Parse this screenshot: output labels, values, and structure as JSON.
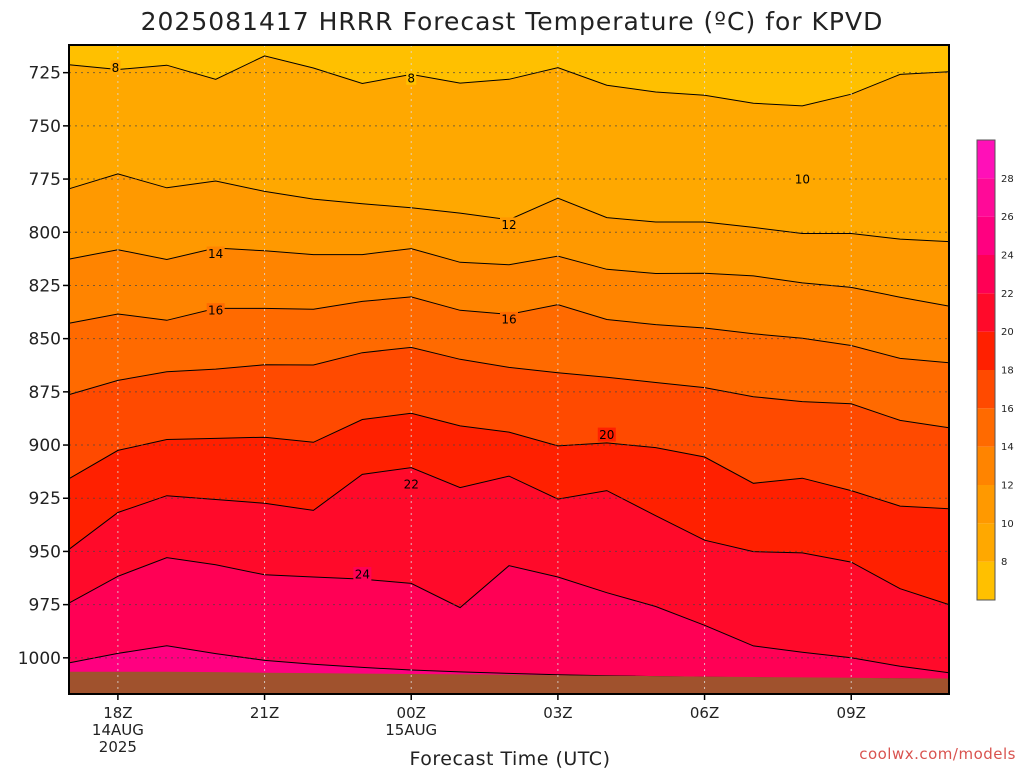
{
  "chart_data": {
    "type": "contour",
    "title": "2025081417 HRRR Forecast Temperature (ºC) for KPVD",
    "xlabel": "Forecast Time (UTC)",
    "ylabel": "",
    "credit": "coolwx.com/models",
    "y_axis": {
      "reversed": true,
      "range_hpa": [
        1017,
        712
      ],
      "ticks": [
        725,
        750,
        775,
        800,
        825,
        850,
        875,
        900,
        925,
        950,
        975,
        1000
      ]
    },
    "x_axis": {
      "range_hours": [
        -1,
        17
      ],
      "ticks": [
        {
          "hour": 0,
          "lines": [
            "18Z",
            "14AUG",
            "2025"
          ]
        },
        {
          "hour": 3,
          "lines": [
            "21Z"
          ]
        },
        {
          "hour": 6,
          "lines": [
            "00Z",
            "15AUG"
          ]
        },
        {
          "hour": 9,
          "lines": [
            "03Z"
          ]
        },
        {
          "hour": 12,
          "lines": [
            "06Z"
          ]
        },
        {
          "hour": 15,
          "lines": [
            "09Z"
          ]
        }
      ]
    },
    "grid": true,
    "surface_pressure_hpa": [
      1006.5,
      1006.5,
      1006.5,
      1006.7,
      1007.0,
      1007.2,
      1007.4,
      1007.6,
      1007.8,
      1008.0,
      1008.2,
      1008.4,
      1008.6,
      1008.8,
      1009.0,
      1009.2,
      1009.4,
      1009.6,
      1009.7
    ],
    "temperature_profiles": [
      {
        "level": 8,
        "hour": [
          -1,
          0,
          1,
          2,
          3,
          4,
          5,
          6,
          7,
          8,
          9,
          10,
          11,
          12,
          13,
          14,
          15,
          16,
          17
        ],
        "pressure": [
          721.3,
          723.5,
          721.5,
          728.1,
          717.1,
          722.8,
          730.1,
          725.8,
          729.9,
          728.1,
          722.6,
          730.9,
          734.1,
          735.6,
          739.4,
          740.6,
          735.1,
          725.8,
          724.6
        ]
      },
      {
        "level": 9,
        "hour": [
          -1,
          0,
          1,
          2,
          3,
          4,
          5,
          6,
          7,
          8,
          9,
          10,
          11,
          12,
          13,
          14,
          15,
          16,
          17
        ],
        "pressure": [
          747.8,
          745.0,
          748.4,
          749.9,
          752.4,
          756.1,
          757.7,
          759.7,
          763.3,
          760.4,
          752.4,
          763.5,
          767.7,
          767.8,
          768.5,
          771.6,
          775.6,
          772.8,
          773.5
        ]
      },
      {
        "level": 10,
        "hour": [
          -1,
          0,
          1,
          2,
          3,
          4,
          5,
          6,
          7,
          8,
          9,
          10,
          11,
          12,
          13,
          14,
          15,
          16,
          17
        ],
        "pressure": [
          779.6,
          772.6,
          779.1,
          775.9,
          780.8,
          784.4,
          786.6,
          788.5,
          791.0,
          794.1,
          784.0,
          793.1,
          795.2,
          795.2,
          797.7,
          800.6,
          800.6,
          803.2,
          804.4
        ]
      },
      {
        "level": 12,
        "hour": [
          -1,
          0,
          1,
          2,
          3,
          4,
          5,
          6,
          7,
          8,
          9,
          10,
          11,
          12,
          13,
          14,
          15,
          16,
          17
        ],
        "pressure": [
          812.6,
          808.2,
          812.8,
          807.4,
          808.7,
          810.5,
          810.5,
          807.7,
          814.1,
          815.3,
          811.2,
          817.4,
          819.4,
          819.3,
          820.5,
          823.8,
          825.9,
          830.5,
          834.7
        ]
      },
      {
        "level": 14,
        "hour": [
          -1,
          0,
          1,
          2,
          3,
          4,
          5,
          6,
          7,
          8,
          9,
          10,
          11,
          12,
          13,
          14,
          15,
          16,
          17
        ],
        "pressure": [
          842.8,
          838.4,
          841.4,
          835.8,
          835.8,
          836.2,
          832.5,
          830.4,
          836.7,
          838.6,
          834.0,
          841.0,
          843.4,
          845.0,
          847.7,
          849.8,
          853.2,
          859.3,
          861.3
        ]
      },
      {
        "level": 16,
        "hour": [
          -1,
          0,
          1,
          2,
          3,
          4,
          5,
          6,
          7,
          8,
          9,
          10,
          11,
          12,
          13,
          14,
          15,
          16,
          17
        ],
        "pressure": [
          876.3,
          869.6,
          865.6,
          864.3,
          862.3,
          862.4,
          856.6,
          854.1,
          859.7,
          863.5,
          866.0,
          868.1,
          870.6,
          873.0,
          877.3,
          879.6,
          880.6,
          888.4,
          891.9
        ]
      },
      {
        "level": 18,
        "hour": [
          -1,
          0,
          1,
          2,
          3,
          4,
          5,
          6,
          7,
          8,
          9,
          10,
          11,
          12,
          13,
          14,
          15,
          16,
          17
        ],
        "pressure": [
          915.8,
          902.5,
          897.4,
          896.9,
          896.3,
          898.7,
          888.0,
          885.1,
          891.0,
          893.9,
          900.4,
          899.0,
          901.2,
          905.6,
          918.0,
          915.6,
          921.4,
          928.7,
          929.9
        ]
      },
      {
        "level": 20,
        "hour": [
          -1,
          0,
          1,
          2,
          3,
          4,
          5,
          6,
          7,
          8,
          9,
          10,
          11,
          12,
          13,
          14,
          15,
          16,
          17
        ],
        "pressure": [
          949.0,
          931.7,
          923.8,
          925.6,
          927.4,
          930.7,
          913.8,
          910.6,
          920.0,
          914.6,
          925.4,
          921.4,
          933.2,
          944.7,
          950.1,
          950.7,
          955.0,
          967.5,
          975.0
        ]
      },
      {
        "level": 22,
        "hour": [
          -1,
          0,
          1,
          2,
          3,
          4,
          5,
          6,
          7,
          8,
          9,
          10,
          11,
          12,
          13,
          14,
          15,
          16,
          17
        ],
        "pressure": [
          974.3,
          961.7,
          952.9,
          956.3,
          961.0,
          962.0,
          963.0,
          965.0,
          976.4,
          956.7,
          962.0,
          969.4,
          975.9,
          984.7,
          994.4,
          997.4,
          1000.0,
          1004.0,
          1007.0
        ]
      },
      {
        "level": 24,
        "hour": [
          -1,
          0,
          1,
          2,
          3,
          4,
          5,
          6,
          7,
          8,
          9,
          10,
          11,
          12,
          13,
          14,
          15,
          16,
          17
        ],
        "pressure": [
          1002.4,
          997.9,
          994.3,
          998.0,
          1001.2,
          1003.0,
          1004.5,
          1005.7,
          1006.6,
          1007.3,
          1008.0,
          1008.4,
          1008.8,
          1009.1,
          1009.4,
          1009.6,
          1009.8,
          1009.9,
          1010.0
        ]
      }
    ],
    "contour_lines": [
      8,
      10,
      12,
      14,
      16,
      18,
      20,
      22,
      24
    ],
    "contour_labels": [
      {
        "text": "8",
        "hour": -0.05,
        "pressure": 722.5
      },
      {
        "text": "8",
        "hour": 6.0,
        "pressure": 727.4
      },
      {
        "text": "10",
        "hour": 14.0,
        "pressure": 775.0
      },
      {
        "text": "12",
        "hour": 8.0,
        "pressure": 796.3
      },
      {
        "text": "14",
        "hour": 2.0,
        "pressure": 810.0
      },
      {
        "text": "16",
        "hour": 2.0,
        "pressure": 836.6
      },
      {
        "text": "16",
        "hour": 8.0,
        "pressure": 840.7
      },
      {
        "text": "20",
        "hour": 10.0,
        "pressure": 895.1
      },
      {
        "text": "22",
        "hour": 6.0,
        "pressure": 918.3
      },
      {
        "text": "24",
        "hour": 5.0,
        "pressure": 960.6
      }
    ],
    "colorbar": {
      "bands": [
        {
          "lo": 6,
          "hi": 8,
          "color": "#ffc000"
        },
        {
          "lo": 8,
          "hi": 10,
          "color": "#ffa800"
        },
        {
          "lo": 10,
          "hi": 12,
          "color": "#ff9900"
        },
        {
          "lo": 12,
          "hi": 14,
          "color": "#ff8400"
        },
        {
          "lo": 14,
          "hi": 16,
          "color": "#ff6a00"
        },
        {
          "lo": 16,
          "hi": 18,
          "color": "#ff4a00"
        },
        {
          "lo": 18,
          "hi": 20,
          "color": "#ff2000"
        },
        {
          "lo": 20,
          "hi": 22,
          "color": "#ff0a2a"
        },
        {
          "lo": 22,
          "hi": 24,
          "color": "#ff0055"
        },
        {
          "lo": 24,
          "hi": 26,
          "color": "#ff0080"
        },
        {
          "lo": 26,
          "hi": 28,
          "color": "#ff0a98"
        },
        {
          "lo": 28,
          "hi": 30,
          "color": "#ff10b8"
        }
      ],
      "ticks": [
        8,
        10,
        12,
        14,
        16,
        18,
        20,
        22,
        24,
        26,
        28
      ]
    },
    "ground_color": "#a0522d"
  }
}
